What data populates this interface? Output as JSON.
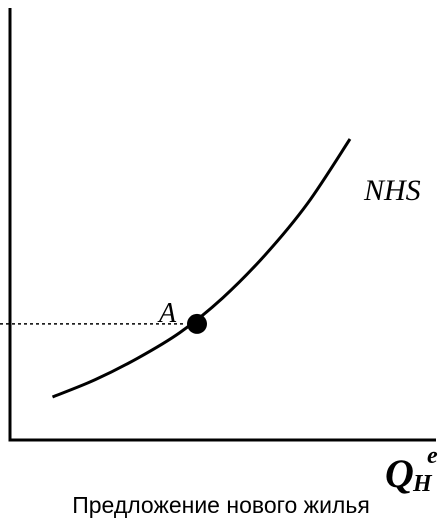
{
  "chart_data": {
    "type": "line",
    "series": [
      {
        "name": "NHS",
        "points": [
          [
            1.0,
            1.0
          ],
          [
            2.0,
            1.4
          ],
          [
            3.0,
            1.9
          ],
          [
            4.0,
            2.5
          ],
          [
            5.0,
            3.3
          ],
          [
            6.0,
            4.3
          ],
          [
            7.0,
            5.5
          ],
          [
            8.0,
            7.0
          ]
        ]
      }
    ],
    "point": {
      "label": "A",
      "x": 4.4,
      "y": 2.7
    },
    "xlabel_main": "Q",
    "xlabel_sub": "H",
    "xlabel_sup": "e",
    "xlim": [
      0,
      10
    ],
    "ylim": [
      0,
      10
    ],
    "grid": false
  },
  "caption": "Предложение нового жилья"
}
